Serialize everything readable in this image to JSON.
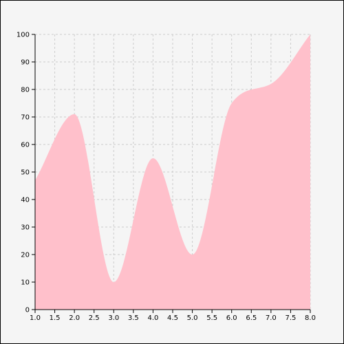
{
  "chart_data": {
    "type": "area",
    "title": "",
    "xlabel": "",
    "ylabel": "",
    "x": [
      1,
      2,
      3,
      4,
      5,
      6,
      7,
      8
    ],
    "series": [
      {
        "values": [
          47,
          71,
          10,
          55,
          20,
          75,
          82,
          100
        ]
      }
    ],
    "xlim": [
      1,
      8
    ],
    "ylim": [
      0,
      100
    ],
    "x_ticks": [
      "1.0",
      "1.5",
      "2.0",
      "2.5",
      "3.0",
      "3.5",
      "4.0",
      "4.5",
      "5.0",
      "5.5",
      "6.0",
      "6.5",
      "7.0",
      "7.5",
      "8.0"
    ],
    "y_ticks": [
      "0",
      "10",
      "20",
      "30",
      "40",
      "50",
      "60",
      "70",
      "80",
      "90",
      "100"
    ],
    "grid": true,
    "fill_color": "#ffc0cb",
    "background_color": "#f5f5f5"
  }
}
